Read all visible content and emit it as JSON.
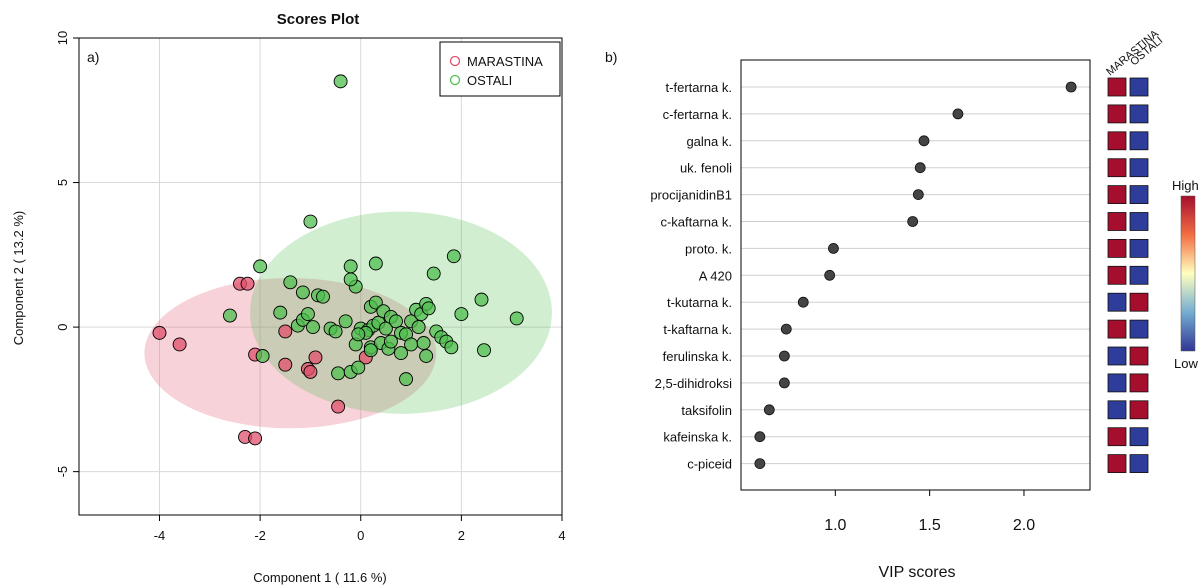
{
  "chart_data": [
    {
      "type": "scatter",
      "panel_label": "a)",
      "title": "Scores Plot",
      "xlabel": "Component 1 ( 11.6 %)",
      "ylabel": "Component 2 ( 13.2 %)",
      "xlim": [
        -5.6,
        4.0
      ],
      "ylim": [
        -6.5,
        10.0
      ],
      "xticks": [
        -4,
        -2,
        0,
        2,
        4
      ],
      "yticks": [
        -5,
        0,
        5,
        10
      ],
      "grid": true,
      "legend_position": "top-right",
      "series": [
        {
          "name": "MARASTINA",
          "color": "#e0506b",
          "ellipse": {
            "center": [
              -1.4,
              -0.9
            ],
            "semi_axes": [
              2.9,
              2.6
            ]
          },
          "points": [
            [
              -4.0,
              -0.2
            ],
            [
              -3.6,
              -0.6
            ],
            [
              -2.4,
              1.5
            ],
            [
              -2.25,
              1.5
            ],
            [
              -2.3,
              -3.8
            ],
            [
              -2.1,
              -3.85
            ],
            [
              -2.1,
              -0.95
            ],
            [
              -1.5,
              -0.15
            ],
            [
              -1.5,
              -1.3
            ],
            [
              -1.05,
              -1.45
            ],
            [
              -1.0,
              -1.55
            ],
            [
              -0.9,
              -1.05
            ],
            [
              -0.45,
              -2.75
            ],
            [
              0.1,
              -1.05
            ]
          ]
        },
        {
          "name": "OSTALI",
          "color": "#4fbf4f",
          "ellipse": {
            "center": [
              0.8,
              0.5
            ],
            "semi_axes": [
              3.0,
              3.5
            ]
          },
          "points": [
            [
              -0.4,
              8.5
            ],
            [
              -1.0,
              3.65
            ],
            [
              -2.0,
              2.1
            ],
            [
              -2.6,
              0.4
            ],
            [
              -1.6,
              0.5
            ],
            [
              -1.95,
              -1.0
            ],
            [
              -1.4,
              1.55
            ],
            [
              -1.15,
              1.2
            ],
            [
              -0.85,
              1.1
            ],
            [
              -0.75,
              1.05
            ],
            [
              -1.25,
              0.05
            ],
            [
              -1.15,
              0.25
            ],
            [
              -1.05,
              0.45
            ],
            [
              -0.95,
              0.0
            ],
            [
              -0.6,
              -0.05
            ],
            [
              -0.5,
              -0.15
            ],
            [
              -0.3,
              0.2
            ],
            [
              -0.1,
              1.4
            ],
            [
              -0.2,
              1.65
            ],
            [
              -0.2,
              2.1
            ],
            [
              0.3,
              2.2
            ],
            [
              -0.1,
              -0.6
            ],
            [
              0.0,
              -0.05
            ],
            [
              0.15,
              -0.1
            ],
            [
              0.25,
              0.05
            ],
            [
              0.35,
              0.15
            ],
            [
              0.5,
              -0.05
            ],
            [
              0.2,
              0.7
            ],
            [
              0.3,
              0.85
            ],
            [
              0.45,
              0.55
            ],
            [
              0.6,
              0.35
            ],
            [
              0.7,
              0.2
            ],
            [
              0.8,
              -0.2
            ],
            [
              0.9,
              -0.25
            ],
            [
              1.0,
              0.2
            ],
            [
              1.1,
              0.6
            ],
            [
              1.15,
              0.0
            ],
            [
              1.2,
              0.45
            ],
            [
              1.3,
              0.8
            ],
            [
              1.35,
              0.65
            ],
            [
              1.5,
              -0.15
            ],
            [
              1.6,
              -0.35
            ],
            [
              1.7,
              -0.5
            ],
            [
              1.8,
              -0.7
            ],
            [
              1.85,
              2.45
            ],
            [
              2.0,
              0.45
            ],
            [
              2.4,
              0.95
            ],
            [
              2.45,
              -0.8
            ],
            [
              3.1,
              0.3
            ],
            [
              1.45,
              1.85
            ],
            [
              0.2,
              -0.7
            ],
            [
              0.4,
              -0.55
            ],
            [
              0.55,
              -0.75
            ],
            [
              0.6,
              -0.5
            ],
            [
              1.0,
              -0.6
            ],
            [
              1.25,
              -0.55
            ],
            [
              1.3,
              -1.0
            ],
            [
              0.1,
              -0.2
            ],
            [
              -0.05,
              -0.25
            ],
            [
              -0.45,
              -1.6
            ],
            [
              -0.2,
              -1.55
            ],
            [
              -0.05,
              -1.4
            ],
            [
              0.9,
              -1.8
            ],
            [
              0.8,
              -0.9
            ],
            [
              0.2,
              -0.8
            ]
          ]
        }
      ]
    },
    {
      "type": "dot",
      "panel_label": "b)",
      "xlabel": "VIP scores",
      "xlim": [
        0.5,
        2.35
      ],
      "xticks": [
        1.0,
        1.5,
        2.0
      ],
      "heatmap_columns": [
        "MARASTINA",
        "OSTALI"
      ],
      "heatmap_colors": {
        "high": "#a50f2d",
        "low": "#2e3c9a"
      },
      "colorbar_labels": {
        "high": "High",
        "low": "Low"
      },
      "variables": [
        {
          "label": "t-fertarna k.",
          "vip": 2.25,
          "heat": [
            "high",
            "low"
          ]
        },
        {
          "label": "c-fertarna k.",
          "vip": 1.65,
          "heat": [
            "high",
            "low"
          ]
        },
        {
          "label": "galna k.",
          "vip": 1.47,
          "heat": [
            "high",
            "low"
          ]
        },
        {
          "label": "uk. fenoli",
          "vip": 1.45,
          "heat": [
            "high",
            "low"
          ]
        },
        {
          "label": "procijanidinB1",
          "vip": 1.44,
          "heat": [
            "high",
            "low"
          ]
        },
        {
          "label": "c-kaftarna k.",
          "vip": 1.41,
          "heat": [
            "high",
            "low"
          ]
        },
        {
          "label": "proto. k.",
          "vip": 0.99,
          "heat": [
            "high",
            "low"
          ]
        },
        {
          "label": "A 420",
          "vip": 0.97,
          "heat": [
            "high",
            "low"
          ]
        },
        {
          "label": "t-kutarna k.",
          "vip": 0.83,
          "heat": [
            "low",
            "high"
          ]
        },
        {
          "label": "t-kaftarna k.",
          "vip": 0.74,
          "heat": [
            "high",
            "low"
          ]
        },
        {
          "label": "ferulinska k.",
          "vip": 0.73,
          "heat": [
            "low",
            "high"
          ]
        },
        {
          "label": "2,5-dihidroksi",
          "vip": 0.73,
          "heat": [
            "low",
            "high"
          ]
        },
        {
          "label": "taksifolin",
          "vip": 0.65,
          "heat": [
            "low",
            "high"
          ]
        },
        {
          "label": "kafeinska k.",
          "vip": 0.6,
          "heat": [
            "high",
            "low"
          ]
        },
        {
          "label": "c-piceid",
          "vip": 0.6,
          "heat": [
            "high",
            "low"
          ]
        }
      ]
    }
  ]
}
